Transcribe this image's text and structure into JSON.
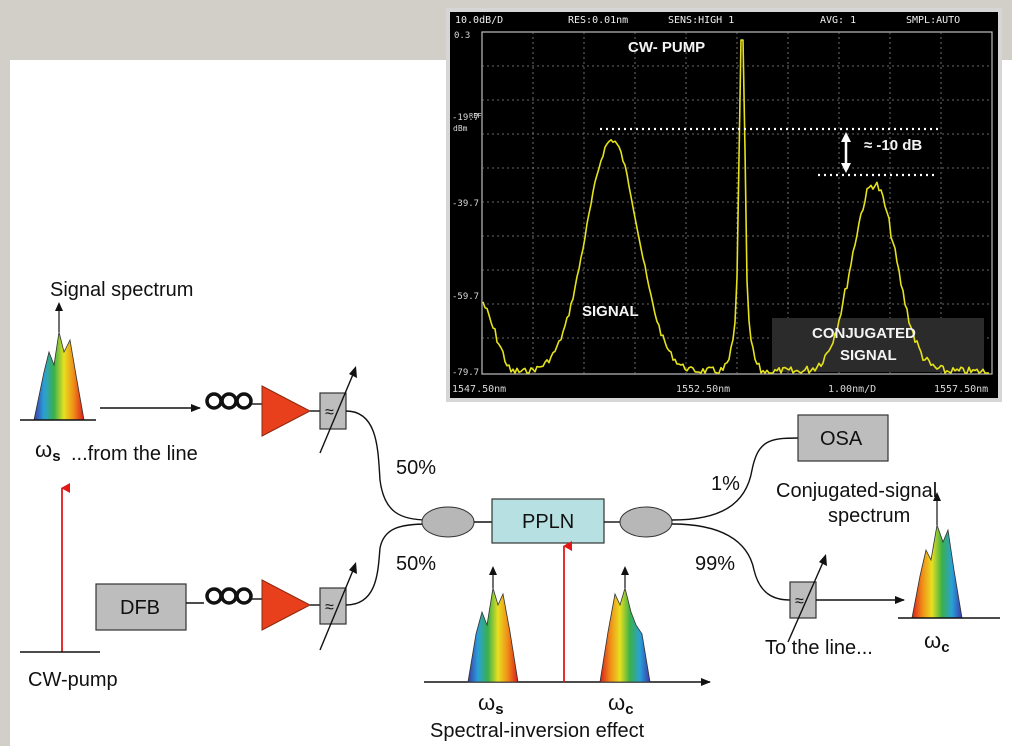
{
  "osa": {
    "header": {
      "scale": "10.0dB/D",
      "res": "RES:0.01nm",
      "sens": "SENS:HIGH 1",
      "avg": "AVG:   1",
      "smpl": "SMPL:AUTO"
    },
    "ylabels": [
      "0.3",
      "-19.7",
      "-39.7",
      "-59.7",
      "-79.7"
    ],
    "ref_label": "REF",
    "unit_label": "dBm",
    "xlabels": {
      "start": "1547.50nm",
      "center": "1552.50nm",
      "span": "1.00nm/D",
      "stop": "1557.50nm"
    },
    "annotations": {
      "pump": "CW- PUMP",
      "signal": "SIGNAL",
      "conj_line1": "CONJUGATED",
      "conj_line2": "SIGNAL",
      "diff": "≈ -10 dB"
    },
    "trace_color": "#e5e21a"
  },
  "setup": {
    "signal_spectrum": "Signal spectrum",
    "omega_s": "ω",
    "omega_s_sub": "s",
    "from_line": "...from the line",
    "cw_pump": "CW-pump",
    "dfb": "DFB",
    "pct_top": "50%",
    "pct_bottom": "50%",
    "ppln": "PPLN",
    "osa": "OSA",
    "pct_1": "1%",
    "pct_99": "99%",
    "conj_spectrum_line1": "Conjugated-signal",
    "conj_spectrum_line2": "spectrum",
    "to_line": "To the line...",
    "omega_c": "ω",
    "omega_c_sub": "c",
    "inv_omega_s": "ω",
    "inv_omega_s_sub": "s",
    "inv_omega_c": "ω",
    "inv_omega_c_sub": "c",
    "spectral_inversion": "Spectral-inversion effect",
    "filter_symbol": "≈"
  },
  "colors": {
    "amplifier": "#e8401c",
    "pump_arrow": "#e01818",
    "ppln_box": "#b6e0e2",
    "gray_box": "#bdbdbd"
  }
}
